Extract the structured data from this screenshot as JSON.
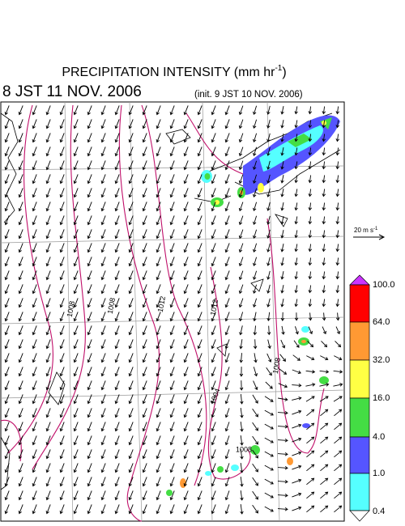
{
  "header": {
    "title": "PRECIPITATION INTENSITY (mm hr",
    "title_sup": "-1",
    "title_end": ")",
    "valid_time": "8 JST 11 NOV. 2006",
    "init_time": "(init. 9 JST 10 NOV. 2006)"
  },
  "reference_vector": {
    "label": "20 m s",
    "label_sup": "-1"
  },
  "contour_labels": [
    "1008",
    "1008",
    "1012",
    "1012",
    "1004",
    "1008",
    "1008"
  ],
  "colorbar": {
    "labels": [
      "100.0",
      "64.0",
      "32.0",
      "16.0",
      "4.0",
      "1.0",
      "0.4"
    ]
  }
}
